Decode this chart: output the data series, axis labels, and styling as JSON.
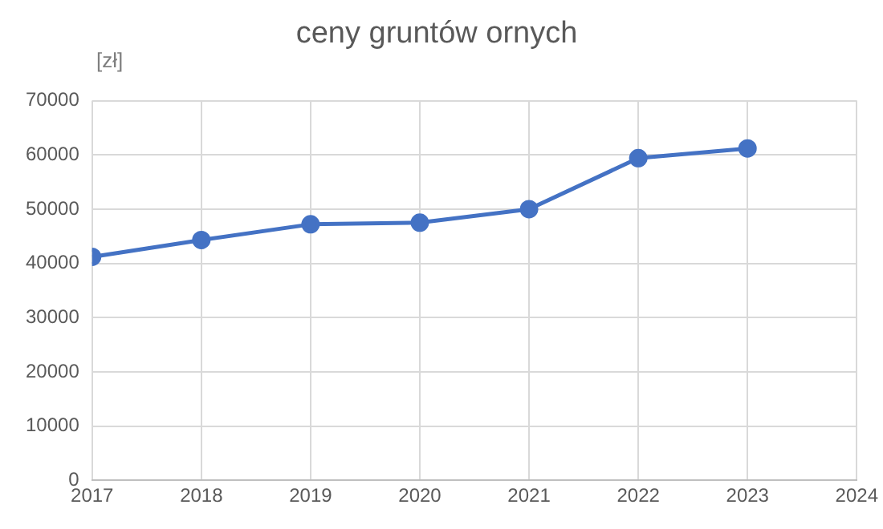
{
  "chart_data": {
    "type": "line",
    "title": "ceny gruntów ornych",
    "ylabel": "[zł]",
    "x": [
      2017,
      2018,
      2019,
      2020,
      2021,
      2022,
      2023
    ],
    "series": [
      {
        "color": "#4472c4",
        "values": [
          41200,
          44300,
          47200,
          47500,
          50000,
          59400,
          61200
        ]
      }
    ],
    "xlim": [
      2017,
      2024
    ],
    "xticks": [
      2017,
      2018,
      2019,
      2020,
      2021,
      2022,
      2023,
      2024
    ],
    "ylim": [
      0,
      70000
    ],
    "yticks": [
      0,
      10000,
      20000,
      30000,
      40000,
      50000,
      60000,
      70000
    ],
    "grid": true,
    "marker": "circle",
    "line_style": "solid",
    "legend": false
  }
}
